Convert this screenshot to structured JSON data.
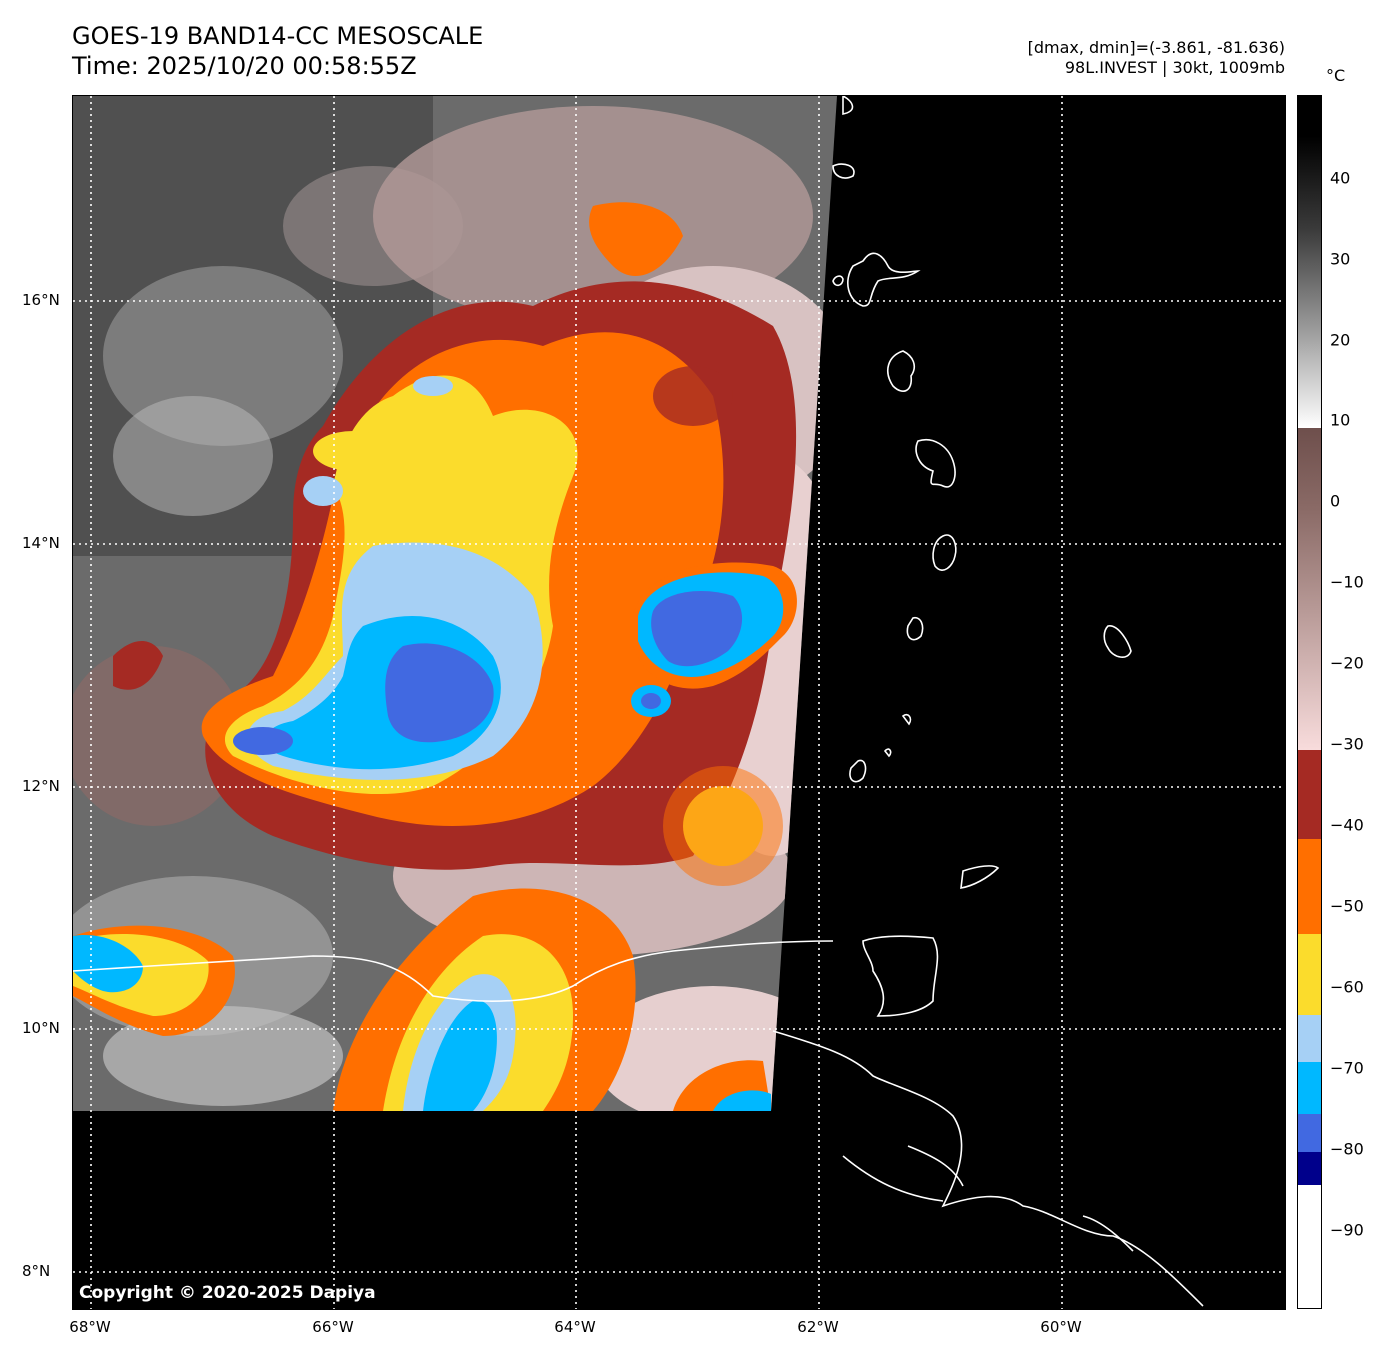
{
  "header": {
    "title_line1": "GOES-19 BAND14-CC MESOSCALE",
    "title_line2": "Time: 2025/10/20 00:58:55Z",
    "info_line1": "[dmax, dmin]=(-3.861, -81.636)",
    "info_line2": "98L.INVEST | 30kt, 1009mb"
  },
  "map": {
    "lat_labels": [
      "16°N",
      "14°N",
      "12°N",
      "10°N",
      "8°N"
    ],
    "lon_labels": [
      "68°W",
      "66°W",
      "64°W",
      "62°W",
      "60°W"
    ],
    "copyright": "Copyright © 2020-2025 Dapiya"
  },
  "colorbar": {
    "unit": "°C",
    "ticks": [
      "40",
      "30",
      "20",
      "10",
      "0",
      "−10",
      "−20",
      "−30",
      "−40",
      "−50",
      "−60",
      "−70",
      "−80",
      "−90"
    ],
    "colors": {
      "warm_black": "#000000",
      "gray_white": "#ffffff",
      "brown": "#8a6a66",
      "pink": "#f8dcdc",
      "dark_red": "#a52a23",
      "orange": "#ff6f00",
      "yellow": "#fbdc2c",
      "light_blue": "#a6d0f5",
      "cyan": "#00b8ff",
      "royal_blue": "#4169e1",
      "navy": "#00008b",
      "cold_white": "#ffffff"
    }
  }
}
